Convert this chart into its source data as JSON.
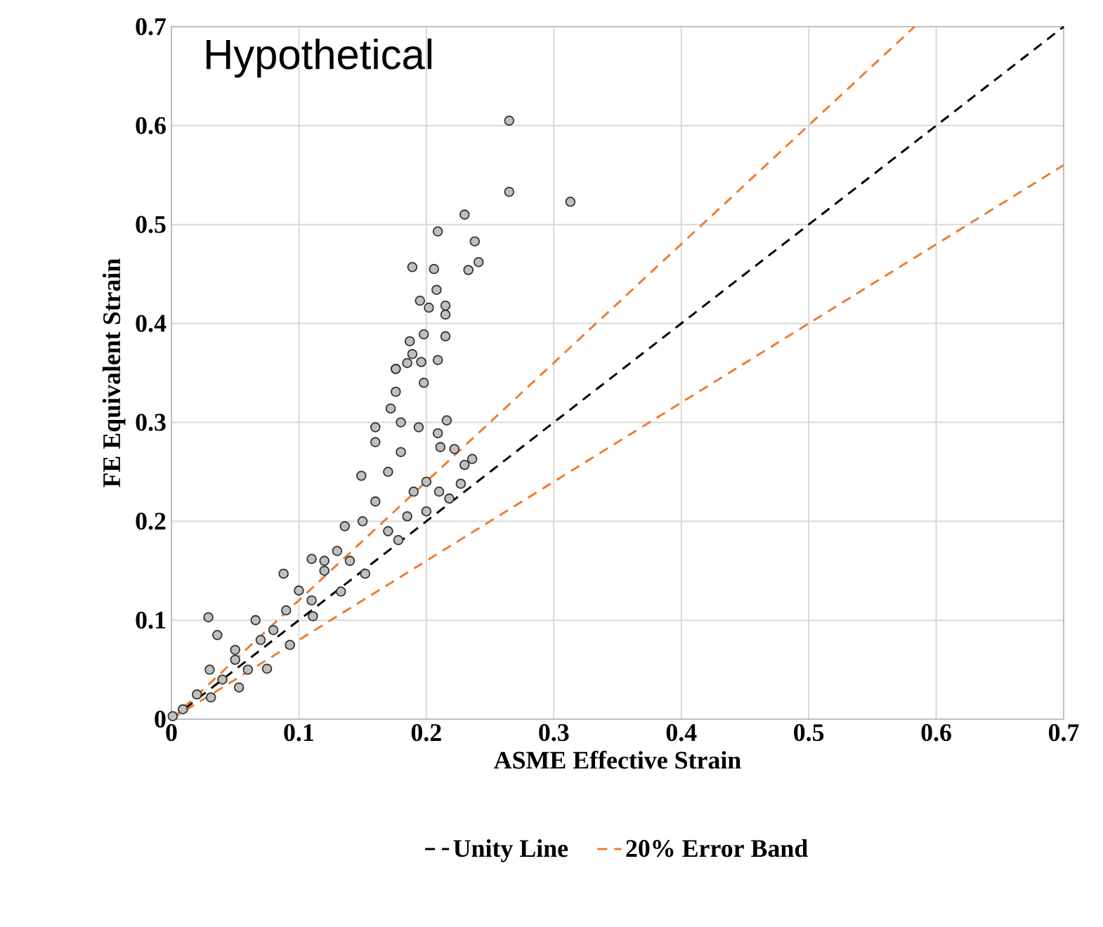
{
  "chart_data": {
    "type": "scatter",
    "xlabel": "ASME Effective Strain",
    "ylabel": "FE Equivalent Strain",
    "annotations": [
      "Hypothetical"
    ],
    "xlim": [
      0,
      0.7
    ],
    "ylim": [
      0,
      0.7
    ],
    "xticks": [
      0,
      0.1,
      0.2,
      0.3,
      0.4,
      0.5,
      0.6,
      0.7
    ],
    "yticks": [
      0,
      0.1,
      0.2,
      0.3,
      0.4,
      0.5,
      0.6,
      0.7
    ],
    "grid": true,
    "legend": "bottom",
    "series": [
      {
        "type": "line",
        "name": "Unity Line",
        "color": "#000000",
        "line_style": "dashed",
        "marker": "none",
        "x": [
          0,
          0.7
        ],
        "values": [
          0,
          0.7
        ]
      },
      {
        "type": "line",
        "name": "20% Error Band",
        "color": "#ed7d31",
        "line_style": "dashed",
        "marker": "none",
        "x": [
          0,
          0.583
        ],
        "values": [
          0,
          0.7
        ]
      },
      {
        "type": "line",
        "color": "#ed7d31",
        "line_style": "dashed",
        "marker": "none",
        "x": [
          0,
          0.7
        ],
        "values": [
          0,
          0.56
        ]
      },
      {
        "color": "#bfbfbf",
        "marker": "circle",
        "x": [
          0.001,
          0.009,
          0.031,
          0.053,
          0.075,
          0.093,
          0.111,
          0.133,
          0.152,
          0.178,
          0.185,
          0.2,
          0.218,
          0.227,
          0.23,
          0.236,
          0.222,
          0.211,
          0.216,
          0.209,
          0.194,
          0.198,
          0.185,
          0.176,
          0.176,
          0.172,
          0.16,
          0.149,
          0.136,
          0.11,
          0.088,
          0.066,
          0.036,
          0.029,
          0.05,
          0.07,
          0.09,
          0.1,
          0.12,
          0.13,
          0.15,
          0.16,
          0.17,
          0.18,
          0.19,
          0.2,
          0.21,
          0.14,
          0.06,
          0.04,
          0.03,
          0.08,
          0.11,
          0.17,
          0.16,
          0.18,
          0.12,
          0.05,
          0.02,
          0.176,
          0.189,
          0.196,
          0.209,
          0.187,
          0.198,
          0.215,
          0.202,
          0.215,
          0.215,
          0.195,
          0.208,
          0.206,
          0.189,
          0.233,
          0.241,
          0.238,
          0.209,
          0.23,
          0.265,
          0.265,
          0.313
        ],
        "values": [
          0.003,
          0.01,
          0.022,
          0.032,
          0.051,
          0.075,
          0.104,
          0.129,
          0.147,
          0.181,
          0.205,
          0.21,
          0.223,
          0.238,
          0.257,
          0.263,
          0.273,
          0.275,
          0.302,
          0.289,
          0.295,
          0.34,
          0.36,
          0.354,
          0.331,
          0.314,
          0.295,
          0.246,
          0.195,
          0.162,
          0.147,
          0.1,
          0.085,
          0.103,
          0.06,
          0.08,
          0.11,
          0.13,
          0.15,
          0.17,
          0.2,
          0.22,
          0.25,
          0.27,
          0.23,
          0.24,
          0.23,
          0.16,
          0.05,
          0.04,
          0.05,
          0.09,
          0.12,
          0.19,
          0.28,
          0.3,
          0.16,
          0.07,
          0.025,
          0.354,
          0.369,
          0.361,
          0.363,
          0.382,
          0.389,
          0.387,
          0.416,
          0.409,
          0.418,
          0.423,
          0.434,
          0.455,
          0.457,
          0.454,
          0.462,
          0.483,
          0.493,
          0.51,
          0.605,
          0.533,
          0.523
        ]
      }
    ]
  }
}
